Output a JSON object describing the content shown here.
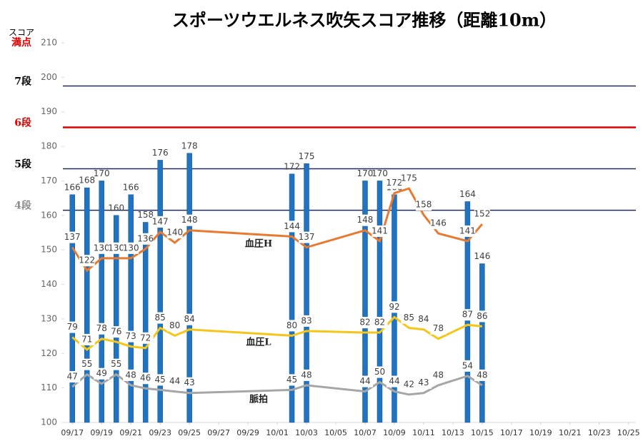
{
  "chart_data": {
    "type": "bar",
    "title": "スポーツウエルネス吹矢スコア推移（距離10m）",
    "y_axis_label": "スコア",
    "x": [
      "09/17",
      "09/18",
      "09/19",
      "09/20",
      "09/21",
      "09/22",
      "09/23",
      "09/24",
      "09/25",
      "10/02",
      "10/03",
      "10/07",
      "10/08",
      "10/09",
      "10/10",
      "10/11",
      "10/12",
      "10/14",
      "10/15"
    ],
    "xlim": [
      "09/17",
      "10/25"
    ],
    "xticks": [
      "09/17",
      "09/19",
      "09/21",
      "09/23",
      "09/25",
      "09/27",
      "09/29",
      "10/01",
      "10/03",
      "10/05",
      "10/07",
      "10/09",
      "10/11",
      "10/13",
      "10/15",
      "10/17",
      "10/19",
      "10/21",
      "10/23",
      "10/25"
    ],
    "ylim": [
      100,
      210
    ],
    "yticks": [
      100,
      110,
      120,
      130,
      140,
      150,
      160,
      170,
      180,
      190,
      200,
      210
    ],
    "y2lim": [
      24,
      269
    ],
    "reference_lines": [
      {
        "label": "満点",
        "value": 210,
        "color": "#e00000",
        "label_color": "#e00000",
        "line": false
      },
      {
        "label": "7段",
        "value": 197.5,
        "color": "#1f2d5a",
        "label_color": "#000000",
        "line": true
      },
      {
        "label": "6段",
        "value": 185.5,
        "color": "#e00000",
        "label_color": "#e00000",
        "line": true
      },
      {
        "label": "5段",
        "value": 173.5,
        "color": "#1f2d5a",
        "label_color": "#000000",
        "line": true
      },
      {
        "label": "4段",
        "value": 161.5,
        "color": "#1f2d5a",
        "label_color": "#8c8c8c",
        "line": true
      }
    ],
    "series": [
      {
        "type": "bar",
        "color": "#1f73c1",
        "values": [
          166,
          168,
          170,
          160,
          166,
          158,
          176,
          null,
          178,
          172,
          175,
          170,
          170,
          166,
          null,
          null,
          null,
          164,
          146
        ]
      },
      {
        "type": "line",
        "name": "血圧H",
        "axis": "y2",
        "color": "#e8792e",
        "values": [
          137,
          122,
          130,
          130,
          130,
          136,
          147,
          140,
          148,
          144,
          137,
          148,
          141,
          172,
          175,
          158,
          146,
          141,
          152
        ]
      },
      {
        "type": "line",
        "name": "血圧L",
        "axis": "y2",
        "color": "#f5c518",
        "values": [
          79,
          71,
          78,
          76,
          73,
          72,
          85,
          80,
          84,
          80,
          83,
          82,
          82,
          92,
          85,
          84,
          78,
          87,
          86
        ]
      },
      {
        "type": "line",
        "name": "脈拍",
        "axis": "y2",
        "color": "#a6a6a6",
        "values": [
          47,
          55,
          49,
          55,
          48,
          46,
          45,
          44,
          43,
          45,
          48,
          44,
          50,
          44,
          42,
          43,
          48,
          54,
          48
        ]
      }
    ]
  }
}
